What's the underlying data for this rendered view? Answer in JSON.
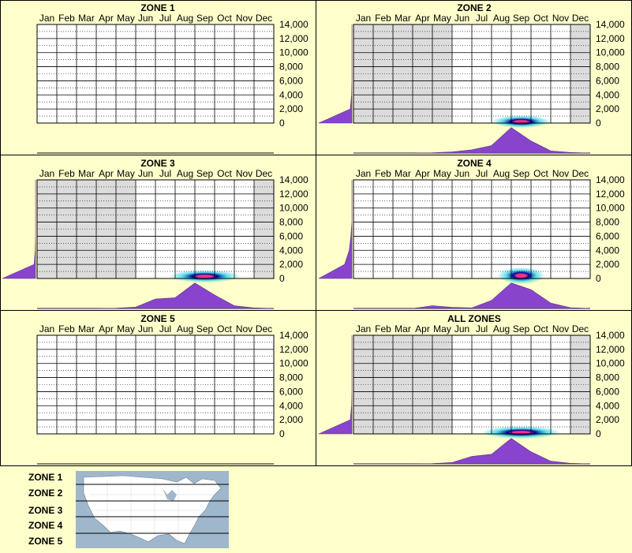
{
  "months": [
    "Jan",
    "Feb",
    "Mar",
    "Apr",
    "May",
    "Jun",
    "Jul",
    "Aug",
    "Sep",
    "Oct",
    "Nov",
    "Dec"
  ],
  "y_ticks": [
    "14,000",
    "12,000",
    "10,000",
    "8,000",
    "6,000",
    "4,000",
    "2,000",
    "0"
  ],
  "colors": {
    "background": "#ffffcc",
    "shaded_month": "#dcdcdc",
    "density_fill": "#8844cc",
    "hotspot_core": "#ff2277",
    "hotspot_mid": "#000099",
    "hotspot_outer": "#00ccdd",
    "map_water": "#9fb7cc",
    "map_land": "#ffffff"
  },
  "chart_data": [
    {
      "type": "heatmap",
      "title": "ZONE 1",
      "shaded_months": [],
      "hotspots": [],
      "monthly_density": [],
      "elevation_density": []
    },
    {
      "type": "heatmap",
      "title": "ZONE 2",
      "shaded_months": [
        "Jan",
        "Feb",
        "Mar",
        "Apr",
        "May",
        "Dec"
      ],
      "hotspots": [
        {
          "month": 9.0,
          "elevation": 200,
          "spread_months": 1.5,
          "spread_elev": 900
        }
      ],
      "monthly_density": [
        0,
        0,
        0,
        0,
        0.01,
        0.04,
        0.12,
        0.28,
        0.95,
        0.45,
        0.08,
        0.02,
        0
      ],
      "elevation_density": [
        1.0,
        0.05,
        0.01,
        0,
        0,
        0,
        0,
        0
      ]
    },
    {
      "type": "heatmap",
      "title": "ZONE 3",
      "shaded_months": [
        "Jan",
        "Feb",
        "Mar",
        "Apr",
        "May",
        "Dec"
      ],
      "hotspots": [
        {
          "month": 9.0,
          "elevation": 300,
          "spread_months": 1.8,
          "spread_elev": 900
        }
      ],
      "monthly_density": [
        0,
        0,
        0,
        0,
        0.01,
        0.05,
        0.35,
        0.4,
        0.95,
        0.5,
        0.1,
        0.02,
        0
      ],
      "elevation_density": [
        1.0,
        0.04,
        0.01,
        0,
        0,
        0,
        0,
        0
      ]
    },
    {
      "type": "heatmap",
      "title": "ZONE 4",
      "shaded_months": [],
      "hotspots": [
        {
          "month": 9.0,
          "elevation": 400,
          "spread_months": 1.2,
          "spread_elev": 1200
        }
      ],
      "monthly_density": [
        0,
        0,
        0,
        0,
        0.1,
        0.04,
        0.02,
        0.3,
        0.95,
        0.7,
        0.2,
        0.03,
        0
      ],
      "elevation_density": [
        1.0,
        0.22,
        0.08,
        0.03,
        0,
        0,
        0,
        0
      ]
    },
    {
      "type": "heatmap",
      "title": "ZONE 5",
      "shaded_months": [],
      "hotspots": [],
      "monthly_density": [],
      "elevation_density": []
    },
    {
      "type": "heatmap",
      "title": "ALL ZONES",
      "shaded_months": [
        "Jan",
        "Feb",
        "Mar",
        "Apr",
        "May",
        "Dec"
      ],
      "hotspots": [
        {
          "month": 9.0,
          "elevation": 200,
          "spread_months": 2.0,
          "spread_elev": 900
        }
      ],
      "monthly_density": [
        0,
        0,
        0,
        0,
        0.01,
        0.05,
        0.28,
        0.36,
        0.95,
        0.45,
        0.1,
        0.02,
        0
      ],
      "elevation_density": [
        1.0,
        0.05,
        0.01,
        0,
        0,
        0,
        0,
        0
      ]
    }
  ],
  "legend": {
    "zones": [
      "ZONE 1",
      "ZONE 2",
      "ZONE 3",
      "ZONE 4",
      "ZONE 5"
    ]
  }
}
